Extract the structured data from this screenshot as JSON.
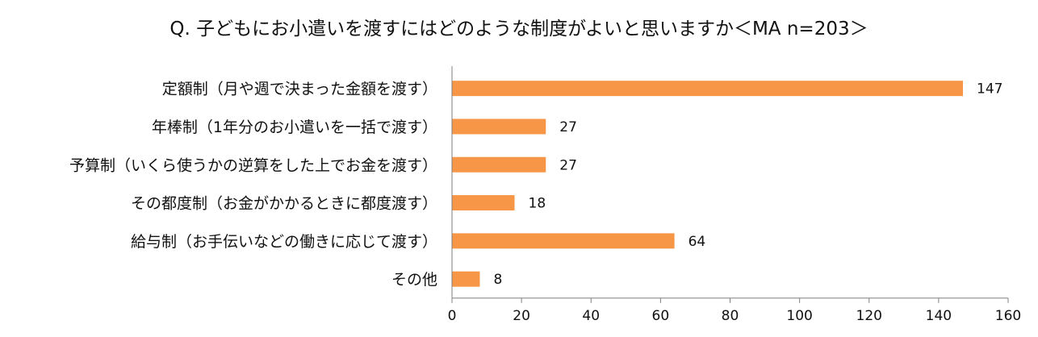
{
  "chart_data": {
    "type": "bar",
    "orientation": "horizontal",
    "title": "Q. 子どもにお小遣いを渡すにはどのような制度がよいと思いますか＜MA n=203＞",
    "categories": [
      "定額制（月や週で決まった金額を渡す）",
      "年棒制（1年分のお小遣いを一括で渡す）",
      "予算制（いくら使うかの逆算をした上でお金を渡す）",
      "その都度制（お金がかかるときに都度渡す）",
      "給与制（お手伝いなどの働きに応じて渡す）",
      "その他"
    ],
    "values": [
      147,
      27,
      27,
      18,
      64,
      8
    ],
    "xlim": [
      0,
      160
    ],
    "xticks": [
      0,
      20,
      40,
      60,
      80,
      100,
      120,
      140,
      160
    ],
    "grid": false,
    "legend": "none",
    "bar_color": "#F79646"
  }
}
